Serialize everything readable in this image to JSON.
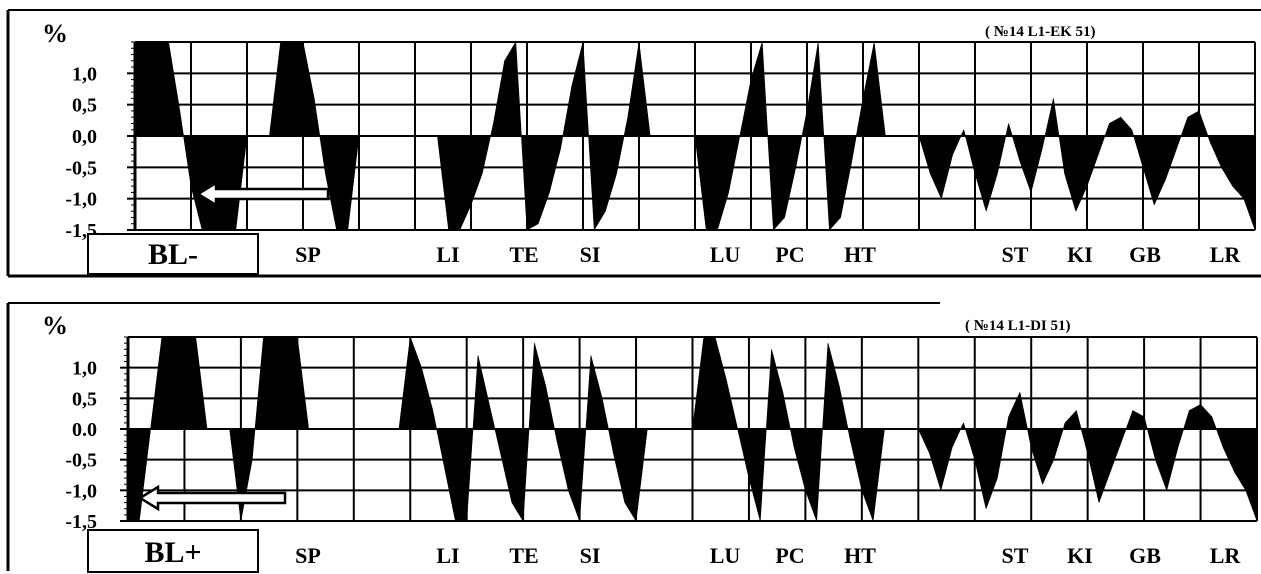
{
  "chart_data": [
    {
      "type": "area",
      "ylabel": "%",
      "annotation": "( №14 L1-EK 51)",
      "badge": "BL-",
      "ylim": [
        -1.5,
        1.5
      ],
      "yticks": [
        "1,0",
        "0,5",
        "0,0",
        "-0,5",
        "-1,0",
        "-1,5"
      ],
      "ytick_values": [
        1.0,
        0.5,
        0.0,
        -0.5,
        -1.0,
        -1.5
      ],
      "categories": [
        "SP",
        "LI",
        "TE",
        "SI",
        "LU",
        "PC",
        "HT",
        "ST",
        "KI",
        "GB",
        "LR"
      ],
      "grid": true,
      "fill_color": "#000000",
      "series": [
        {
          "x": [
            0,
            0.4,
            0.8,
            1.2,
            1.6,
            2.0,
            2.4,
            2.8,
            3.2,
            3.6,
            4.0,
            4.4,
            4.8,
            5.2,
            5.6,
            6.0,
            6.4,
            6.8,
            7.2,
            7.6,
            8.0,
            8.4,
            8.8,
            9.2,
            9.6,
            10.0,
            10.4,
            10.8,
            11.2,
            11.6,
            12.0,
            12.4,
            12.8,
            13.2,
            13.6,
            14.0,
            14.4,
            14.8,
            15.2,
            15.6,
            16.0,
            16.4,
            16.8,
            17.2,
            17.6,
            18.0,
            18.4,
            18.8,
            19.2,
            19.6,
            20.0,
            20.4,
            20.8,
            21.2,
            21.6,
            22.0,
            22.4,
            22.8,
            23.2,
            23.6,
            24.0,
            24.4,
            24.8,
            25.2,
            25.6,
            26.0,
            26.4,
            26.8,
            27.2,
            27.6,
            28.0,
            28.4,
            28.8,
            29.2,
            29.6,
            30.0,
            30.4,
            30.8,
            31.2,
            31.6,
            32.0,
            32.4,
            32.8,
            33.2,
            33.6,
            34.0,
            34.4,
            34.8,
            35.2,
            35.6,
            36.0,
            36.4,
            36.8,
            37.2,
            37.6,
            38.0,
            38.4,
            38.8,
            39.2,
            39.6,
            40.0
          ],
          "y": [
            1.5,
            1.5,
            1.5,
            1.5,
            0.4,
            -0.8,
            -1.5,
            -1.5,
            -1.5,
            -1.5,
            0,
            0,
            0,
            1.5,
            1.5,
            1.5,
            0.6,
            -0.6,
            -1.5,
            -1.5,
            0,
            0,
            0,
            0,
            0,
            0,
            0,
            0,
            -1.5,
            -1.5,
            -1.1,
            -0.6,
            0.2,
            1.2,
            1.5,
            -1.5,
            -1.4,
            -0.9,
            -0.2,
            0.8,
            1.5,
            -1.5,
            -1.2,
            -0.6,
            0.3,
            1.5,
            0,
            0,
            0,
            0,
            0,
            -1.5,
            -1.5,
            -0.9,
            0.0,
            0.9,
            1.5,
            -1.5,
            -1.3,
            -0.5,
            0.4,
            1.5,
            -1.5,
            -1.3,
            -0.4,
            0.6,
            1.5,
            0,
            0,
            0,
            0,
            -0.6,
            -1.0,
            -0.3,
            0.1,
            -0.6,
            -1.2,
            -0.6,
            0.2,
            -0.4,
            -0.9,
            -0.2,
            0.6,
            -0.6,
            -1.2,
            -0.8,
            -0.3,
            0.2,
            0.3,
            0.1,
            -0.5,
            -1.1,
            -0.7,
            -0.2,
            0.3,
            0.4,
            -0.1,
            -0.5,
            -0.8,
            -1.0,
            -1.5
          ]
        }
      ]
    },
    {
      "type": "area",
      "ylabel": "%",
      "annotation": "( №14 L1-DI 51)",
      "badge": "BL+",
      "ylim": [
        -1.5,
        1.5
      ],
      "yticks": [
        "1,0",
        "0,5",
        "0.0",
        "-0,5",
        "-1,0",
        "-1,5"
      ],
      "ytick_values": [
        1.0,
        0.5,
        0.0,
        -0.5,
        -1.0,
        -1.5
      ],
      "categories": [
        "SP",
        "LI",
        "TE",
        "SI",
        "LU",
        "PC",
        "HT",
        "ST",
        "KI",
        "GB",
        "LR"
      ],
      "grid": true,
      "fill_color": "#000000",
      "series": [
        {
          "x": [
            0,
            0.4,
            0.8,
            1.2,
            1.6,
            2.0,
            2.4,
            2.8,
            3.2,
            3.6,
            4.0,
            4.4,
            4.8,
            5.2,
            5.6,
            6.0,
            6.4,
            6.8,
            7.2,
            7.6,
            8.0,
            8.4,
            8.8,
            9.2,
            9.6,
            10.0,
            10.4,
            10.8,
            11.2,
            11.6,
            12.0,
            12.4,
            12.8,
            13.2,
            13.6,
            14.0,
            14.4,
            14.8,
            15.2,
            15.6,
            16.0,
            16.4,
            16.8,
            17.2,
            17.6,
            18.0,
            18.4,
            18.8,
            19.2,
            19.6,
            20.0,
            20.4,
            20.8,
            21.2,
            21.6,
            22.0,
            22.4,
            22.8,
            23.2,
            23.6,
            24.0,
            24.4,
            24.8,
            25.2,
            25.6,
            26.0,
            26.4,
            26.8,
            27.2,
            27.6,
            28.0,
            28.4,
            28.8,
            29.2,
            29.6,
            30.0,
            30.4,
            30.8,
            31.2,
            31.6,
            32.0,
            32.4,
            32.8,
            33.2,
            33.6,
            34.0,
            34.4,
            34.8,
            35.2,
            35.6,
            36.0,
            36.4,
            36.8,
            37.2,
            37.6,
            38.0,
            38.4,
            38.8,
            39.2,
            39.6,
            40.0
          ],
          "y": [
            -1.5,
            -1.5,
            0,
            1.5,
            1.5,
            1.5,
            1.5,
            0,
            0,
            0,
            -1.5,
            -0.5,
            1.5,
            1.5,
            1.5,
            1.5,
            0,
            0,
            0,
            0,
            0,
            0,
            0,
            0,
            0,
            1.5,
            1.0,
            0.3,
            -0.6,
            -1.5,
            -1.5,
            1.2,
            0.4,
            -0.4,
            -1.2,
            -1.5,
            1.4,
            0.7,
            -0.2,
            -1.0,
            -1.5,
            1.2,
            0.5,
            -0.4,
            -1.2,
            -1.5,
            0,
            0,
            0,
            0,
            0,
            1.5,
            1.5,
            0.8,
            0.0,
            -0.8,
            -1.5,
            1.3,
            0.6,
            -0.3,
            -1.0,
            -1.5,
            1.4,
            0.7,
            -0.2,
            -1.0,
            -1.5,
            0,
            0,
            0,
            0,
            -0.4,
            -1.0,
            -0.3,
            0.1,
            -0.5,
            -1.3,
            -0.8,
            0.2,
            0.6,
            -0.3,
            -0.9,
            -0.5,
            0.1,
            0.3,
            -0.4,
            -1.2,
            -0.7,
            -0.2,
            0.3,
            0.2,
            -0.5,
            -1.0,
            -0.3,
            0.3,
            0.4,
            0.2,
            -0.3,
            -0.7,
            -1.0,
            -1.5
          ]
        }
      ]
    }
  ]
}
